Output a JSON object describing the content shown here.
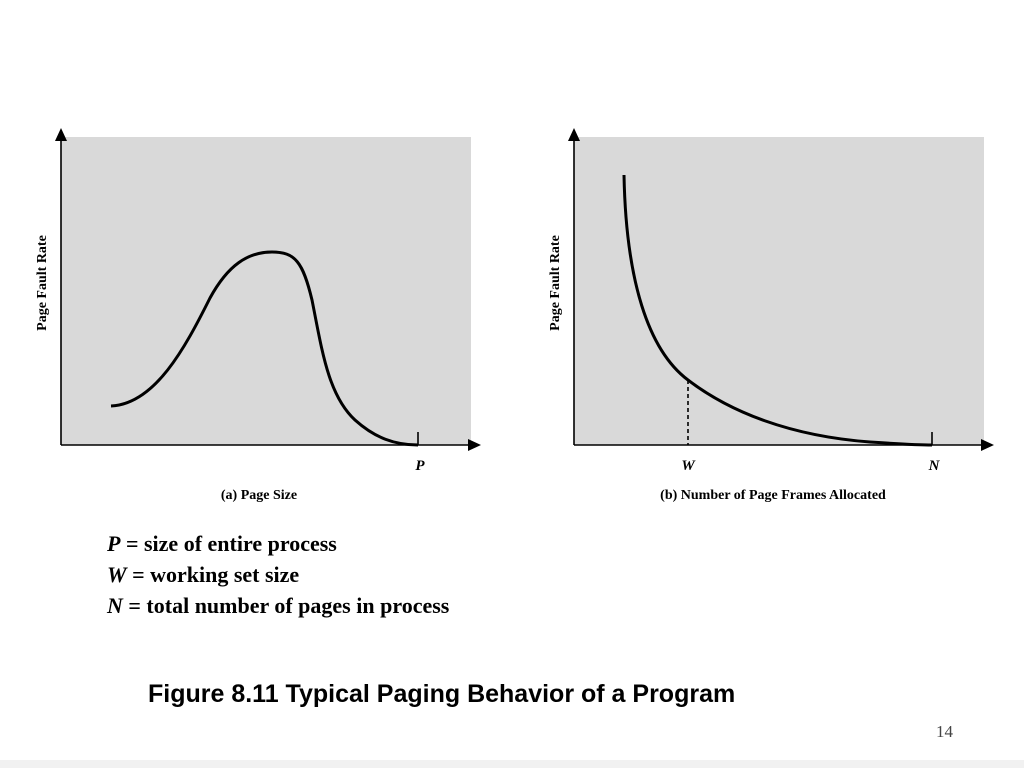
{
  "panel_a": {
    "y_label": "Page Fault Rate",
    "x_mark": "P",
    "caption": "(a) Page Size"
  },
  "panel_b": {
    "y_label": "Page Fault Rate",
    "x_mark_w": "W",
    "x_mark_n": "N",
    "caption": "(b) Number of Page Frames Allocated"
  },
  "legend": [
    {
      "symbol": "P",
      "text": " = size of entire process"
    },
    {
      "symbol": "W",
      "text": " = working set size"
    },
    {
      "symbol": "N",
      "text": " = total number of pages in process"
    }
  ],
  "figure_caption": "Figure 8.11 Typical Paging Behavior of a Program",
  "page_number": "14",
  "colors": {
    "plot_background": "#d9d9d9",
    "curve": "#000000"
  }
}
